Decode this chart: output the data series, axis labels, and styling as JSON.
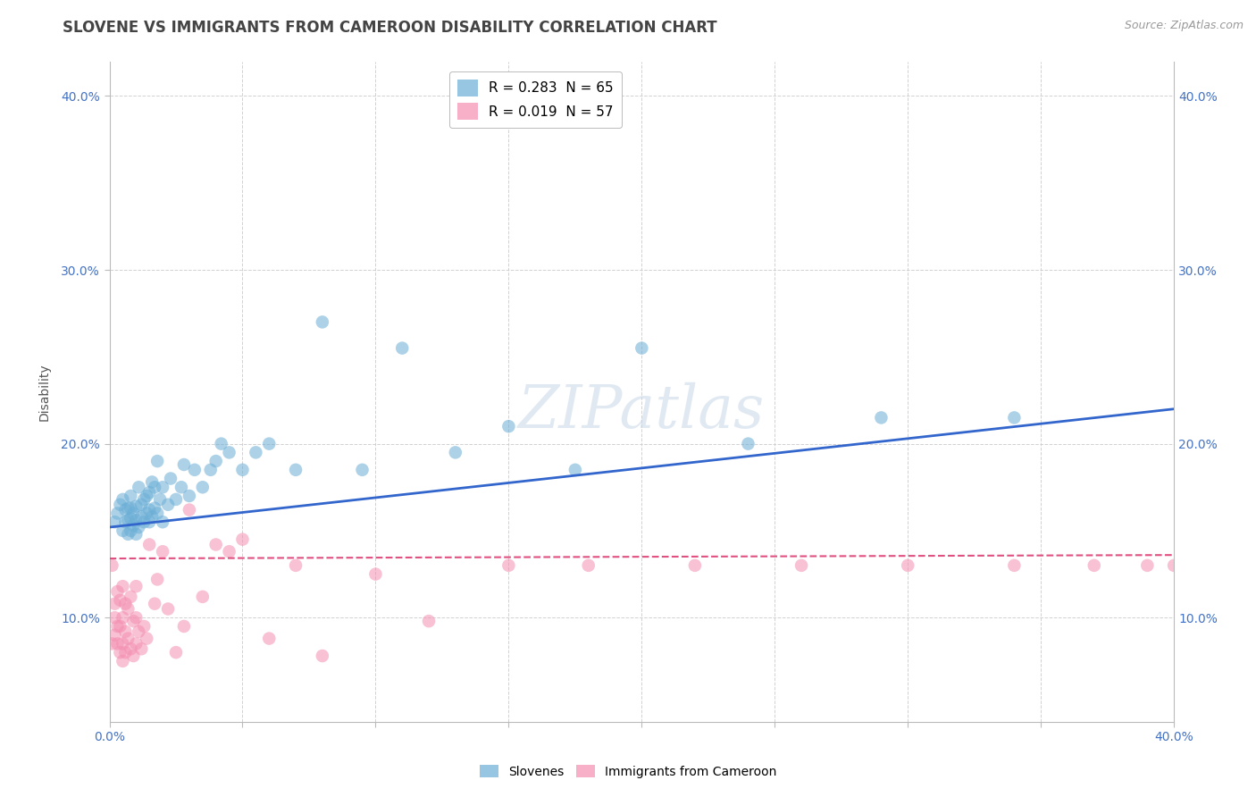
{
  "title": "SLOVENE VS IMMIGRANTS FROM CAMEROON DISABILITY CORRELATION CHART",
  "source": "Source: ZipAtlas.com",
  "ylabel": "Disability",
  "xlim": [
    0.0,
    0.4
  ],
  "ylim": [
    0.04,
    0.42
  ],
  "yticks": [
    0.1,
    0.2,
    0.3,
    0.4
  ],
  "ytick_labels": [
    "10.0%",
    "20.0%",
    "30.0%",
    "40.0%"
  ],
  "xticks": [
    0.0,
    0.05,
    0.1,
    0.15,
    0.2,
    0.25,
    0.3,
    0.35,
    0.4
  ],
  "xtick_labels": [
    "0.0%",
    "",
    "",
    "",
    "",
    "",
    "",
    "",
    "40.0%"
  ],
  "legend_entries": [
    {
      "label": "R = 0.283  N = 65",
      "color": "#a8c8e8"
    },
    {
      "label": "R = 0.019  N = 57",
      "color": "#f4a8c0"
    }
  ],
  "slovene_color": "#6baed6",
  "cameroon_color": "#f48fb1",
  "slovene_line_color": "#3366cc",
  "cameroon_line_color": "#e05080",
  "background_color": "#ffffff",
  "grid_color": "#cccccc",
  "watermark_text": "ZIPatlas",
  "slovene_x": [
    0.002,
    0.003,
    0.004,
    0.005,
    0.005,
    0.006,
    0.006,
    0.007,
    0.007,
    0.007,
    0.008,
    0.008,
    0.008,
    0.008,
    0.009,
    0.009,
    0.01,
    0.01,
    0.01,
    0.011,
    0.011,
    0.012,
    0.012,
    0.013,
    0.013,
    0.014,
    0.014,
    0.015,
    0.015,
    0.015,
    0.016,
    0.016,
    0.017,
    0.017,
    0.018,
    0.018,
    0.019,
    0.02,
    0.02,
    0.022,
    0.023,
    0.025,
    0.027,
    0.028,
    0.03,
    0.032,
    0.035,
    0.038,
    0.04,
    0.042,
    0.045,
    0.05,
    0.055,
    0.06,
    0.07,
    0.08,
    0.095,
    0.11,
    0.13,
    0.15,
    0.175,
    0.2,
    0.24,
    0.29,
    0.34
  ],
  "slovene_y": [
    0.155,
    0.16,
    0.165,
    0.15,
    0.168,
    0.155,
    0.162,
    0.148,
    0.156,
    0.163,
    0.15,
    0.157,
    0.163,
    0.17,
    0.153,
    0.16,
    0.148,
    0.156,
    0.164,
    0.152,
    0.175,
    0.158,
    0.165,
    0.155,
    0.168,
    0.16,
    0.17,
    0.155,
    0.162,
    0.172,
    0.158,
    0.178,
    0.163,
    0.175,
    0.16,
    0.19,
    0.168,
    0.155,
    0.175,
    0.165,
    0.18,
    0.168,
    0.175,
    0.188,
    0.17,
    0.185,
    0.175,
    0.185,
    0.19,
    0.2,
    0.195,
    0.185,
    0.195,
    0.2,
    0.185,
    0.27,
    0.185,
    0.255,
    0.195,
    0.21,
    0.185,
    0.255,
    0.2,
    0.215,
    0.215
  ],
  "cameroon_x": [
    0.001,
    0.001,
    0.002,
    0.002,
    0.002,
    0.003,
    0.003,
    0.003,
    0.004,
    0.004,
    0.004,
    0.005,
    0.005,
    0.005,
    0.005,
    0.006,
    0.006,
    0.006,
    0.007,
    0.007,
    0.008,
    0.008,
    0.009,
    0.009,
    0.01,
    0.01,
    0.01,
    0.011,
    0.012,
    0.013,
    0.014,
    0.015,
    0.017,
    0.018,
    0.02,
    0.022,
    0.025,
    0.028,
    0.03,
    0.035,
    0.04,
    0.045,
    0.05,
    0.06,
    0.07,
    0.08,
    0.1,
    0.12,
    0.15,
    0.18,
    0.22,
    0.26,
    0.3,
    0.34,
    0.37,
    0.39,
    0.4
  ],
  "cameroon_y": [
    0.13,
    0.085,
    0.09,
    0.1,
    0.108,
    0.085,
    0.095,
    0.115,
    0.08,
    0.095,
    0.11,
    0.075,
    0.085,
    0.1,
    0.118,
    0.08,
    0.092,
    0.108,
    0.088,
    0.105,
    0.082,
    0.112,
    0.078,
    0.098,
    0.085,
    0.1,
    0.118,
    0.092,
    0.082,
    0.095,
    0.088,
    0.142,
    0.108,
    0.122,
    0.138,
    0.105,
    0.08,
    0.095,
    0.162,
    0.112,
    0.142,
    0.138,
    0.145,
    0.088,
    0.13,
    0.078,
    0.125,
    0.098,
    0.13,
    0.13,
    0.13,
    0.13,
    0.13,
    0.13,
    0.13,
    0.13,
    0.13
  ],
  "title_fontsize": 12,
  "axis_label_fontsize": 10,
  "tick_fontsize": 10,
  "legend_fontsize": 11
}
